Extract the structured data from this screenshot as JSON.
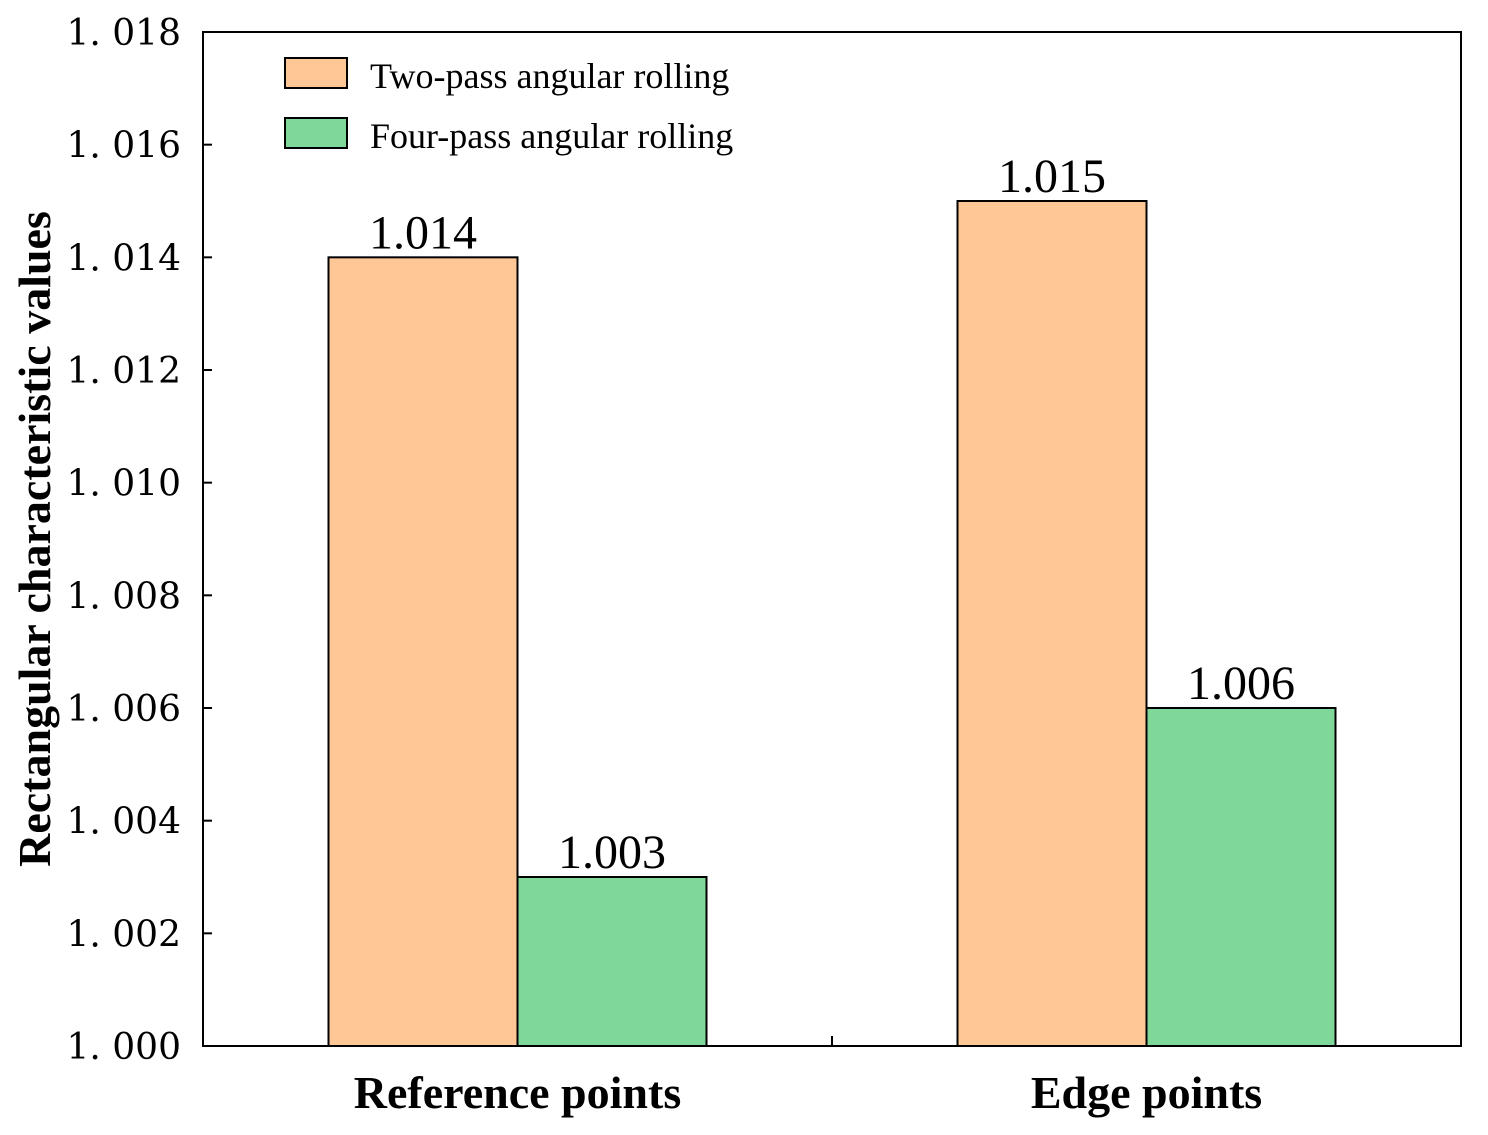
{
  "chart_data": {
    "type": "bar",
    "title": "",
    "xlabel": "",
    "ylabel": "Rectangular characteristic values",
    "categories": [
      "Reference points",
      "Edge points"
    ],
    "series": [
      {
        "name": "Two-pass angular rolling",
        "color": "#FFC795",
        "values": [
          1.014,
          1.015
        ],
        "labels": [
          "1.014",
          "1.015"
        ]
      },
      {
        "name": "Four-pass angular rolling",
        "color": "#7FD89A",
        "values": [
          1.003,
          1.006
        ],
        "labels": [
          "1.003",
          "1.006"
        ]
      }
    ],
    "ylim": [
      1.0,
      1.018
    ],
    "yticks": [
      1.0,
      1.002,
      1.004,
      1.006,
      1.008,
      1.01,
      1.012,
      1.014,
      1.016,
      1.018
    ],
    "ytick_labels": [
      "1. 000",
      "1. 002",
      "1. 004",
      "1. 006",
      "1. 008",
      "1. 010",
      "1. 012",
      "1. 014",
      "1. 016",
      "1. 018"
    ],
    "grid": false,
    "legend_position": "top-left"
  }
}
